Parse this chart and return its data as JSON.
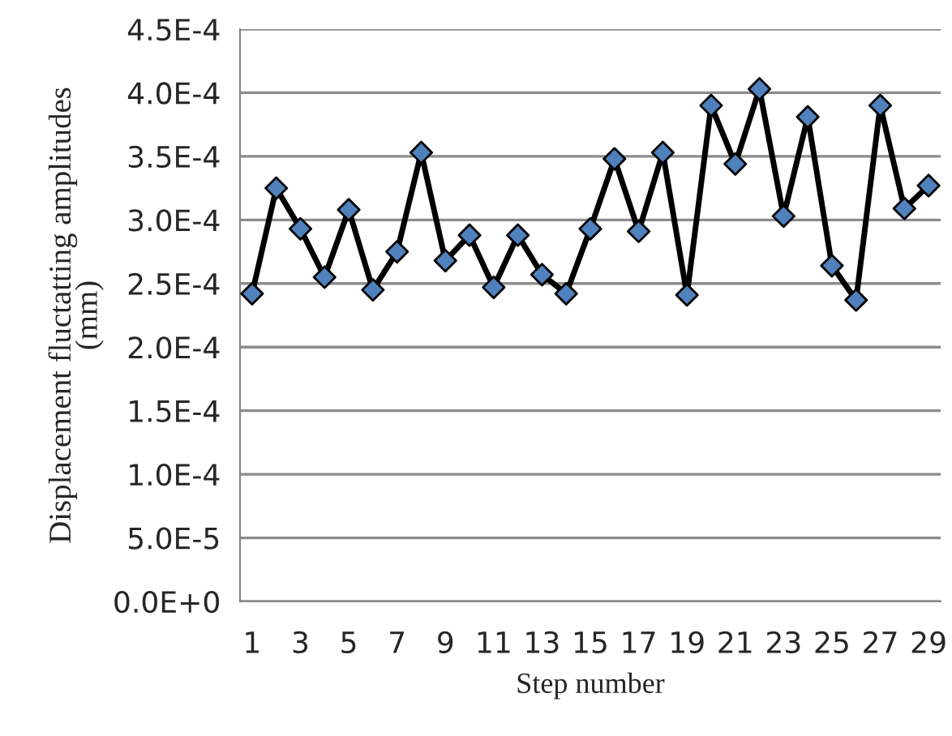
{
  "chart_data": {
    "type": "line",
    "xlabel": "Step number",
    "ylabel": "Displacement fluctatting amplitudes\n(mm)",
    "categories": [
      "1",
      null,
      "3",
      null,
      "5",
      null,
      "7",
      null,
      "9",
      null,
      "11",
      null,
      "13",
      null,
      "15",
      null,
      "17",
      null,
      "19",
      null,
      "21",
      null,
      "23",
      null,
      "25",
      null,
      "27",
      null,
      "29"
    ],
    "series": [
      {
        "color": "#000000",
        "colors": [
          "#4f81bd",
          "#4f81bd",
          "#4f81bd",
          "#4f81bd",
          "#4f81bd",
          "#4f81bd",
          "#4f81bd",
          "#4f81bd",
          "#4f81bd",
          "#4f81bd",
          "#4f81bd",
          "#4f81bd",
          "#4f81bd",
          "#4f81bd",
          "#4f81bd",
          "#4f81bd",
          "#4f81bd",
          "#4f81bd",
          "#4f81bd",
          "#4f81bd",
          "#4f81bd",
          "#4f81bd",
          "#4f81bd",
          "#4f81bd",
          "#4f81bd",
          "#4f81bd",
          "#4f81bd",
          "#4f81bd",
          "#4f81bd"
        ],
        "values": [
          0.000242,
          0.000325,
          0.000293,
          0.000255,
          0.000308,
          0.000245,
          0.000275,
          0.000353,
          0.000268,
          0.000288,
          0.000247,
          0.000288,
          0.000257,
          0.000242,
          0.000293,
          0.000348,
          0.000291,
          0.000353,
          0.000241,
          0.00039,
          0.000344,
          0.000403,
          0.000303,
          0.000381,
          0.000264,
          0.000237,
          0.00039,
          0.000309,
          0.000327
        ]
      }
    ],
    "ylim": [
      0,
      0.00045
    ],
    "yticks": [
      {
        "value": 0,
        "label": "0.0E+0"
      },
      {
        "value": 5e-05,
        "label": "5.0E-5"
      },
      {
        "value": 0.0001,
        "label": "1.0E-4"
      },
      {
        "value": 0.00015,
        "label": "1.5E-4"
      },
      {
        "value": 0.0002,
        "label": "2.0E-4"
      },
      {
        "value": 0.00025,
        "label": "2.5E-4"
      },
      {
        "value": 0.0003,
        "label": "3.0E-4"
      },
      {
        "value": 0.00035,
        "label": "3.5E-4"
      },
      {
        "value": 0.0004,
        "label": "4.0E-4"
      },
      {
        "value": 0.00045,
        "label": "4.5E-4"
      }
    ],
    "grid": "y",
    "marker": "diamond",
    "line_style": "solid",
    "legend": false
  }
}
